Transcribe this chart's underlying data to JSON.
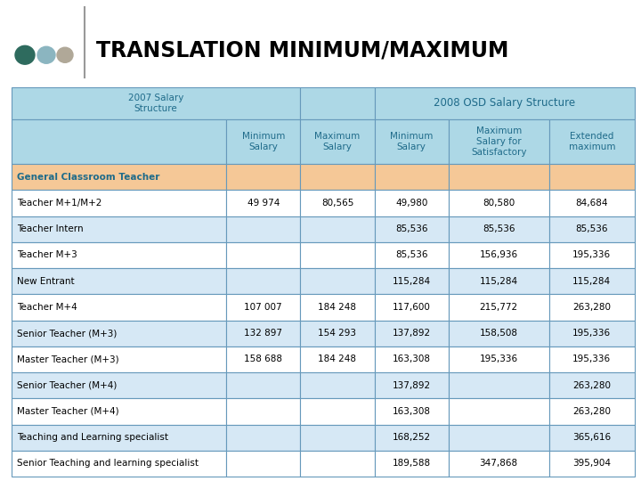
{
  "title": "TRANSLATION MINIMUM/MAXIMUM",
  "header_bg": "#ADD8E6",
  "orange_row_bg": "#F5C897",
  "white_row_bg": "#FFFFFF",
  "alt_row_bg": "#D6E8F5",
  "dot_colors": [
    "#2E6B5E",
    "#8BB5C0",
    "#B0A898"
  ],
  "header_text_color": "#1F6B8A",
  "data_text_color": "#000000",
  "border_color": "#6699BB",
  "rows": [
    {
      "label": "General Classroom Teacher",
      "values": [
        "",
        "",
        "",
        "",
        ""
      ],
      "style": "orange"
    },
    {
      "label": "Teacher M+1/M+2",
      "values": [
        "49 974",
        "80,565",
        "49,980",
        "80,580",
        "84,684"
      ],
      "style": "white"
    },
    {
      "label": "Teacher Intern",
      "values": [
        "",
        "",
        "85,536",
        "85,536",
        "85,536"
      ],
      "style": "alt"
    },
    {
      "label": "Teacher M+3",
      "values": [
        "",
        "",
        "85,536",
        "156,936",
        "195,336"
      ],
      "style": "white"
    },
    {
      "label": "New Entrant",
      "values": [
        "",
        "",
        "115,284",
        "115,284",
        "115,284"
      ],
      "style": "alt"
    },
    {
      "label": "Teacher M+4",
      "values": [
        "107 007",
        "184 248",
        "117,600",
        "215,772",
        "263,280"
      ],
      "style": "white"
    },
    {
      "label": "Senior Teacher (M+3)",
      "values": [
        "132 897",
        "154 293",
        "137,892",
        "158,508",
        "195,336"
      ],
      "style": "alt"
    },
    {
      "label": "Master Teacher (M+3)",
      "values": [
        "158 688",
        "184 248",
        "163,308",
        "195,336",
        "195,336"
      ],
      "style": "white"
    },
    {
      "label": "Senior Teacher (M+4)",
      "values": [
        "",
        "",
        "137,892",
        "",
        "263,280"
      ],
      "style": "alt"
    },
    {
      "label": "Master Teacher (M+4)",
      "values": [
        "",
        "",
        "163,308",
        "",
        "263,280"
      ],
      "style": "white"
    },
    {
      "label": "Teaching and Learning specialist",
      "values": [
        "",
        "",
        "168,252",
        "",
        "365,616"
      ],
      "style": "alt"
    },
    {
      "label": "Senior Teaching and learning specialist",
      "values": [
        "",
        "",
        "189,588",
        "347,868",
        "395,904"
      ],
      "style": "white"
    }
  ]
}
